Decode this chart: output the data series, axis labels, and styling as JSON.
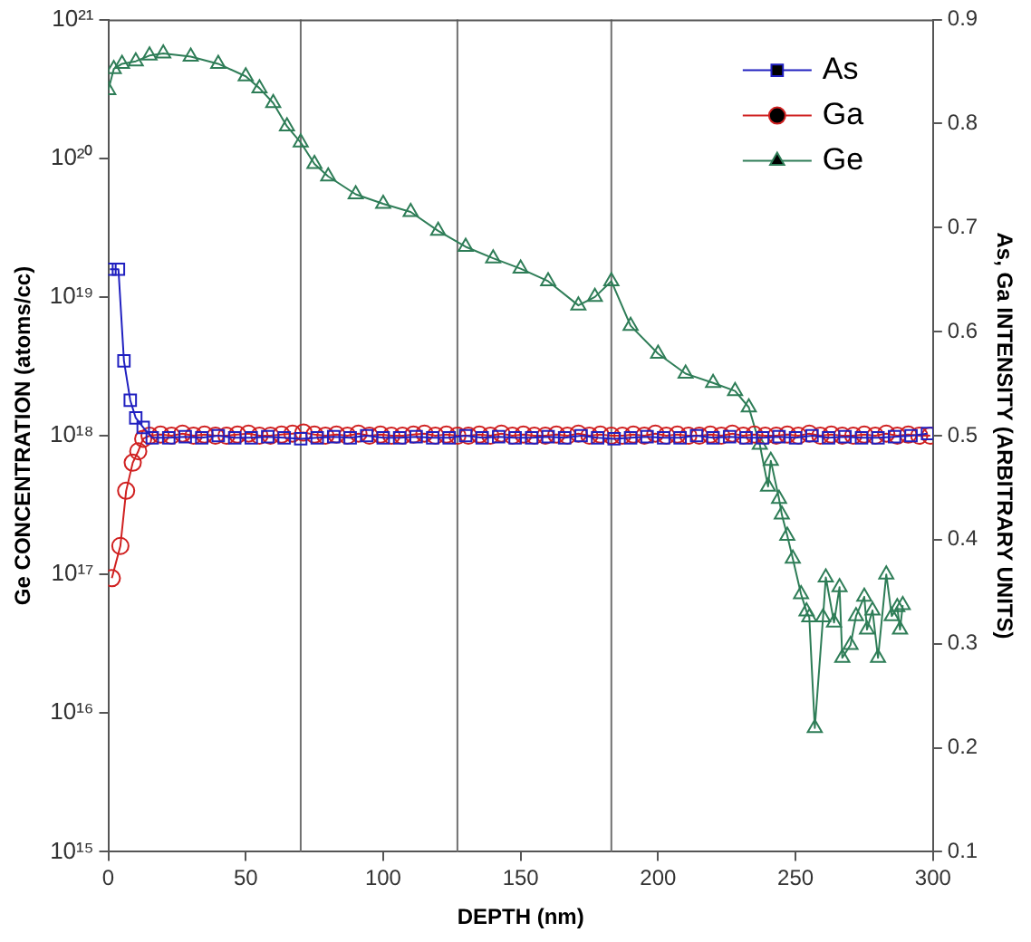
{
  "chart_data": {
    "type": "line",
    "xlabel": "DEPTH (nm)",
    "ylabel": "Ge CONCENTRATION (atoms/cc)",
    "y2label": "As, Ga INTENSITY (ARBITRARY UNITS)",
    "xlim": [
      0,
      300
    ],
    "xticks": [
      0,
      50,
      100,
      150,
      200,
      250,
      300
    ],
    "log": "y",
    "ylim": [
      1000000000000000.0,
      1e+21
    ],
    "yticks": [
      {
        "value": 1000000000000000.0,
        "label": "10¹⁵"
      },
      {
        "value": 1e+16,
        "label": "10¹⁶"
      },
      {
        "value": 1e+17,
        "label": "10¹⁷"
      },
      {
        "value": 1e+18,
        "label": "10¹⁸"
      },
      {
        "value": 1e+19,
        "label": "10¹⁹"
      },
      {
        "value": 1e+20,
        "label": "10²⁰"
      },
      {
        "value": 1e+21,
        "label": "10²¹"
      }
    ],
    "y2lim": [
      0.1,
      0.9
    ],
    "y2ticks": [
      0.1,
      0.2,
      0.3,
      0.4,
      0.5,
      0.6,
      0.7,
      0.8,
      0.9
    ],
    "grid": false,
    "legend": "top right",
    "line_style": "solid",
    "ref_lines": [
      {
        "axis": "x",
        "value": 70,
        "color": "#707070"
      },
      {
        "axis": "x",
        "value": 127,
        "color": "#707070"
      },
      {
        "axis": "x",
        "value": 183,
        "color": "#707070"
      }
    ],
    "series": [
      {
        "name": "As",
        "color": "#2020c0",
        "marker": "square",
        "axis": "y2",
        "x": [
          0.6,
          3.7,
          5.7,
          8,
          10,
          12.7,
          16,
          22,
          28,
          34,
          40,
          46,
          52,
          58,
          64,
          70,
          76,
          82,
          88,
          94,
          100,
          106,
          112,
          118,
          124,
          130,
          136,
          142,
          148,
          154,
          160,
          166,
          172,
          178,
          184,
          190,
          196,
          202,
          208,
          214,
          220,
          226,
          232,
          238,
          244,
          250,
          256,
          262,
          268,
          274,
          280,
          286,
          292,
          298
        ],
        "values": [
          0.66,
          0.66,
          0.572,
          0.534,
          0.517,
          0.508,
          0.498,
          0.498,
          0.499,
          0.498,
          0.5,
          0.498,
          0.498,
          0.499,
          0.498,
          0.497,
          0.498,
          0.499,
          0.498,
          0.5,
          0.498,
          0.498,
          0.499,
          0.498,
          0.498,
          0.5,
          0.498,
          0.499,
          0.498,
          0.498,
          0.499,
          0.498,
          0.5,
          0.498,
          0.497,
          0.498,
          0.499,
          0.498,
          0.498,
          0.5,
          0.498,
          0.499,
          0.498,
          0.498,
          0.499,
          0.498,
          0.5,
          0.498,
          0.499,
          0.498,
          0.498,
          0.499,
          0.5,
          0.502
        ]
      },
      {
        "name": "Ga",
        "color": "#d02020",
        "marker": "circle",
        "axis": "y2",
        "x": [
          1.3,
          4.4,
          6.5,
          8.9,
          10.9,
          12.7,
          15,
          19,
          23,
          27,
          31,
          35,
          39,
          43,
          47,
          51,
          55,
          59,
          63,
          67,
          71,
          75,
          79,
          83,
          87,
          91,
          95,
          99,
          103,
          107,
          111,
          115,
          119,
          123,
          127,
          131,
          135,
          139,
          143,
          147,
          151,
          155,
          159,
          163,
          167,
          171,
          175,
          179,
          183,
          187,
          191,
          195,
          199,
          203,
          207,
          211,
          215,
          219,
          223,
          227,
          231,
          235,
          239,
          243,
          247,
          251,
          255,
          259,
          263,
          267,
          271,
          275,
          279,
          283,
          287,
          291,
          295,
          299
        ],
        "values": [
          0.363,
          0.394,
          0.447,
          0.474,
          0.485,
          0.497,
          0.5,
          0.501,
          0.5,
          0.502,
          0.5,
          0.501,
          0.5,
          0.5,
          0.501,
          0.502,
          0.5,
          0.5,
          0.501,
          0.502,
          0.503,
          0.501,
          0.5,
          0.501,
          0.5,
          0.502,
          0.5,
          0.501,
          0.5,
          0.5,
          0.501,
          0.502,
          0.5,
          0.501,
          0.5,
          0.5,
          0.501,
          0.5,
          0.502,
          0.5,
          0.501,
          0.5,
          0.5,
          0.501,
          0.5,
          0.502,
          0.5,
          0.501,
          0.5,
          0.5,
          0.501,
          0.5,
          0.502,
          0.5,
          0.501,
          0.5,
          0.5,
          0.501,
          0.5,
          0.502,
          0.5,
          0.501,
          0.5,
          0.5,
          0.501,
          0.5,
          0.502,
          0.5,
          0.501,
          0.5,
          0.5,
          0.501,
          0.5,
          0.502,
          0.5,
          0.501,
          0.5,
          0.5
        ]
      },
      {
        "name": "Ge",
        "color": "#2e7d57",
        "marker": "triangle",
        "x": [
          0,
          2,
          5,
          10,
          15,
          20,
          30,
          40,
          50,
          55,
          60,
          65,
          70,
          75,
          80,
          90,
          100,
          110,
          120,
          130,
          140,
          150,
          160,
          171,
          177,
          183,
          190,
          200,
          210,
          220,
          228,
          233,
          237,
          240,
          241,
          244,
          245,
          247,
          249,
          252,
          254,
          255,
          257,
          260,
          261,
          264,
          266,
          267,
          270,
          272,
          275,
          276,
          278,
          280,
          283,
          285,
          287,
          288,
          289
        ],
        "values": [
          3.1e+20,
          4.4e+20,
          4.8e+20,
          5e+20,
          5.5e+20,
          5.7e+20,
          5.4e+20,
          4.8e+20,
          3.9e+20,
          3.2e+20,
          2.5e+20,
          1.7e+20,
          1.3e+20,
          9.1e+19,
          7.4e+19,
          5.5e+19,
          4.7e+19,
          4.1e+19,
          3e+19,
          2.3e+19,
          1.9e+19,
          1.6e+19,
          1.3e+19,
          8.7e+18,
          1e+19,
          1.3e+19,
          6.2e+18,
          3.9e+18,
          2.8e+18,
          2.4e+18,
          2.1e+18,
          1.6e+18,
          8.6e+17,
          4.3e+17,
          6.6e+17,
          3.5e+17,
          2.7e+17,
          1.9e+17,
          1.3e+17,
          7.2e+16,
          5.4e+16,
          4.9e+16,
          7800000000000000.0,
          4.9e+16,
          9.5e+16,
          4.5e+16,
          8.1e+16,
          2.5e+16,
          3.1e+16,
          5e+16,
          6.9e+16,
          4e+16,
          5.5e+16,
          2.5e+16,
          1e+17,
          5e+16,
          5.8e+16,
          4e+16,
          6e+16
        ]
      }
    ]
  }
}
